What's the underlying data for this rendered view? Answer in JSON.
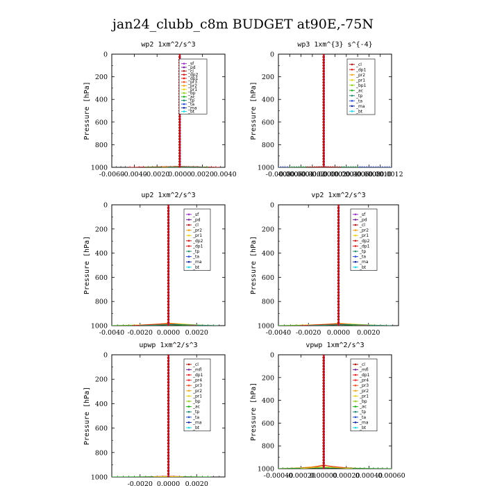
{
  "title": "jan24_clubb_c8m  BUDGET at90E,-75N",
  "colors": {
    "sf": "#9b30c8",
    "pd": "#7a1fa0",
    "mfl": "#7a1fa0",
    "cl": "#b01818",
    "dp2": "#d01818",
    "dp1": "#e01a1a",
    "pr4": "#ee3030",
    "pr3": "#f05020",
    "pr2": "#f5a623",
    "pr1": "#e8d418",
    "bp": "#90d020",
    "ac": "#20b020",
    "tp": "#208c70",
    "ta": "#2850d0",
    "ma": "#1428a0",
    "bt": "#18d8e8"
  },
  "chart_data": [
    {
      "type": "line",
      "title": "wp2   1xm^2/s^3",
      "ylabel": "Pressure  [hPa]",
      "xlim": [
        -0.006,
        0.004
      ],
      "ylim": [
        1000,
        0
      ],
      "xticks": [
        -0.006,
        -0.004,
        -0.002,
        0.0,
        0.002,
        0.004
      ],
      "xtick_labels": [
        "-0.0060",
        "-0.0040",
        "-0.0020",
        "0.0000",
        "0.0020",
        "0.0040"
      ],
      "yticks": [
        0,
        200,
        400,
        600,
        800,
        1000
      ],
      "ytick_labels": [
        "0",
        "200",
        "400",
        "600",
        "800",
        "1000"
      ],
      "legend": [
        "_sf",
        "_pd",
        "_cl",
        "_dp2",
        "_dp1",
        "_pr3",
        "_pr2",
        "_pr1",
        "_bp",
        "_ac",
        "_tp",
        "_ta",
        "_ma",
        "_bt"
      ],
      "legend_keys": [
        "sf",
        "pd",
        "cl",
        "dp2",
        "dp1",
        "pr3",
        "pr2",
        "pr1",
        "bp",
        "ac",
        "tp",
        "ta",
        "ma",
        "bt"
      ],
      "legend_position": "top-right",
      "surface": [
        {
          "key": "dp1",
          "points": [
            [
              -0.0045,
              1000
            ],
            [
              -0.002,
              996
            ],
            [
              -0.0005,
              993
            ],
            [
              0.0,
              991
            ],
            [
              0.0006,
              994
            ],
            [
              0.002,
              997
            ],
            [
              0.0035,
              1000
            ]
          ]
        },
        {
          "key": "cl",
          "points": [
            [
              -0.0035,
              1000
            ],
            [
              -0.0015,
              997
            ],
            [
              0.0,
              993
            ],
            [
              0.0015,
              996
            ],
            [
              0.003,
              1000
            ]
          ]
        },
        {
          "key": "ac",
          "points": [
            [
              -0.003,
              1000
            ],
            [
              -0.001,
              998
            ],
            [
              0.0,
              995
            ],
            [
              0.001,
              998
            ],
            [
              0.0025,
              1000
            ]
          ]
        },
        {
          "key": "pr1",
          "points": [
            [
              -0.0015,
              1000
            ],
            [
              0.0,
              997
            ],
            [
              0.0015,
              1000
            ]
          ]
        },
        {
          "key": "tp",
          "points": [
            [
              -0.001,
              1000
            ],
            [
              0.0005,
              998
            ],
            [
              0.002,
              1000
            ]
          ]
        }
      ]
    },
    {
      "type": "line",
      "title": "wp3   1xm^{3} s^{-4}",
      "ylabel": "Pressure  [hPa]",
      "xlim": [
        -0.0008,
        0.0012
      ],
      "ylim": [
        1000,
        0
      ],
      "xticks": [
        -0.0008,
        -0.0006,
        -0.0004,
        -0.0002,
        0.0,
        0.0002,
        0.0004,
        0.0006,
        0.0008,
        0.001,
        0.0012
      ],
      "xtick_labels": [
        "-0.0008",
        "-0.0006",
        "-0.0004",
        "-0.0002",
        "0.0000",
        "0.0002",
        "0.0004",
        "0.0006",
        "0.0008",
        "0.0010",
        "0.0012"
      ],
      "yticks": [
        0,
        200,
        400,
        600,
        800,
        1000
      ],
      "ytick_labels": [
        "0",
        "200",
        "400",
        "600",
        "800",
        "1000"
      ],
      "legend": [
        "_cl",
        "_dp1",
        "_pr2",
        "_pr1",
        "_bp1",
        "_ac",
        "_tp",
        "_ta",
        "_ma",
        "_bt"
      ],
      "legend_keys": [
        "cl",
        "dp1",
        "pr2",
        "pr1",
        "bp",
        "ac",
        "tp",
        "ta",
        "ma",
        "bt"
      ],
      "legend_position": "top-right",
      "surface": [
        {
          "key": "ta",
          "points": [
            [
              -0.0008,
              1000
            ],
            [
              -0.0003,
              998
            ],
            [
              0.0,
              996
            ],
            [
              0.0004,
              998
            ],
            [
              0.0012,
              1000
            ]
          ]
        },
        {
          "key": "ac",
          "points": [
            [
              -0.0006,
              1000
            ],
            [
              0.0,
              997
            ],
            [
              0.0006,
              1000
            ]
          ]
        },
        {
          "key": "dp1",
          "points": [
            [
              -0.0003,
              1000
            ],
            [
              0.0,
              995
            ],
            [
              0.0003,
              1000
            ]
          ]
        }
      ]
    },
    {
      "type": "line",
      "title": "up2   1xm^2/s^3",
      "ylabel": "Pressure  [hPa]",
      "xlim": [
        -0.004,
        0.004
      ],
      "ylim": [
        1000,
        0
      ],
      "xticks": [
        -0.004,
        -0.002,
        0.0,
        0.002
      ],
      "xtick_labels": [
        "-0.0040",
        "-0.0020",
        "0.0000",
        "0.0020"
      ],
      "yticks": [
        0,
        200,
        400,
        600,
        800,
        1000
      ],
      "ytick_labels": [
        "0",
        "200",
        "400",
        "600",
        "800",
        "1000"
      ],
      "legend": [
        "_sf",
        "_pd",
        "_cl",
        "_pr2",
        "_pr1",
        "_dp2",
        "_dp1",
        "_tp",
        "_ta",
        "_ma",
        "_bt"
      ],
      "legend_keys": [
        "sf",
        "pd",
        "cl",
        "pr2",
        "pr1",
        "dp2",
        "dp1",
        "tp",
        "ta",
        "ma",
        "bt"
      ],
      "legend_position": "top-right",
      "surface": [
        {
          "key": "pr1",
          "points": [
            [
              -0.004,
              1000
            ],
            [
              -0.002,
              994
            ],
            [
              -0.0005,
              985
            ],
            [
              0.0,
              978
            ],
            [
              0.0008,
              985
            ],
            [
              0.002,
              994
            ],
            [
              0.0035,
              1000
            ]
          ]
        },
        {
          "key": "pr2",
          "points": [
            [
              -0.0035,
              1000
            ],
            [
              -0.0015,
              995
            ],
            [
              0.0,
              988
            ],
            [
              0.0012,
              993
            ],
            [
              0.003,
              1000
            ]
          ]
        },
        {
          "key": "ac",
          "points": [
            [
              -0.004,
              1000
            ],
            [
              -0.001,
              997
            ],
            [
              0.0,
              992
            ],
            [
              0.001,
              996
            ],
            [
              0.0025,
              1000
            ]
          ]
        },
        {
          "key": "dp1",
          "points": [
            [
              -0.0025,
              1000
            ],
            [
              0.0,
              983
            ],
            [
              0.002,
              1000
            ]
          ]
        },
        {
          "key": "tp",
          "points": [
            [
              -0.002,
              1000
            ],
            [
              0.0005,
              990
            ],
            [
              0.0035,
              1000
            ]
          ]
        }
      ]
    },
    {
      "type": "line",
      "title": "vp2   1xm^2/s^3",
      "ylabel": "Pressure  [hPa]",
      "xlim": [
        -0.004,
        0.004
      ],
      "ylim": [
        1000,
        0
      ],
      "xticks": [
        -0.004,
        -0.002,
        0.0,
        0.002
      ],
      "xtick_labels": [
        "-0.0040",
        "-0.0020",
        "0.0000",
        "0.0020"
      ],
      "yticks": [
        0,
        200,
        400,
        600,
        800,
        1000
      ],
      "ytick_labels": [
        "0",
        "200",
        "400",
        "600",
        "800",
        "1000"
      ],
      "legend": [
        "_sf",
        "_pd",
        "_cl",
        "_pr2",
        "_pr1",
        "_dp2",
        "_dp1",
        "_tp",
        "_ta",
        "_ma",
        "_bt"
      ],
      "legend_keys": [
        "sf",
        "pd",
        "cl",
        "pr2",
        "pr1",
        "dp2",
        "dp1",
        "tp",
        "ta",
        "ma",
        "bt"
      ],
      "legend_position": "top-right",
      "surface": [
        {
          "key": "pr1",
          "points": [
            [
              -0.004,
              1000
            ],
            [
              -0.002,
              994
            ],
            [
              -0.0005,
              986
            ],
            [
              0.0,
              980
            ],
            [
              0.0008,
              986
            ],
            [
              0.002,
              994
            ],
            [
              0.0035,
              1000
            ]
          ]
        },
        {
          "key": "pr2",
          "points": [
            [
              -0.0035,
              1000
            ],
            [
              -0.0015,
              995
            ],
            [
              0.0,
              989
            ],
            [
              0.0012,
              994
            ],
            [
              0.003,
              1000
            ]
          ]
        },
        {
          "key": "ac",
          "points": [
            [
              -0.004,
              1000
            ],
            [
              -0.001,
              997
            ],
            [
              0.0,
              992
            ],
            [
              0.001,
              996
            ],
            [
              0.0025,
              1000
            ]
          ]
        },
        {
          "key": "dp1",
          "points": [
            [
              -0.0025,
              1000
            ],
            [
              0.0,
              984
            ],
            [
              0.002,
              1000
            ]
          ]
        },
        {
          "key": "tp",
          "points": [
            [
              -0.002,
              1000
            ],
            [
              0.0005,
              991
            ],
            [
              0.0035,
              1000
            ]
          ]
        }
      ]
    },
    {
      "type": "line",
      "title": "upwp   1xm^2/s^3",
      "ylabel": "Pressure  [hPa]",
      "xlim": [
        -0.004,
        0.004
      ],
      "ylim": [
        1000,
        0
      ],
      "xticks": [
        -0.002,
        0.0,
        0.002
      ],
      "xtick_labels": [
        "-0.0020",
        "0.0000",
        "0.0020"
      ],
      "yticks": [
        0,
        200,
        400,
        600,
        800,
        1000
      ],
      "ytick_labels": [
        "0",
        "200",
        "400",
        "600",
        "800",
        "1000"
      ],
      "legend": [
        "_cl",
        "_mfl",
        "_dp1",
        "_pr4",
        "_pr3",
        "_pr2",
        "_pr1",
        "_bp",
        "_ac",
        "_tp",
        "_ta",
        "_ma",
        "_bt"
      ],
      "legend_keys": [
        "cl",
        "mfl",
        "dp1",
        "pr4",
        "pr3",
        "pr2",
        "pr1",
        "bp",
        "ac",
        "tp",
        "ta",
        "ma",
        "bt"
      ],
      "legend_position": "top-right",
      "surface": [
        {
          "key": "dp1",
          "points": [
            [
              -0.002,
              1000
            ],
            [
              0.0,
              994
            ],
            [
              0.002,
              1000
            ]
          ]
        },
        {
          "key": "ac",
          "points": [
            [
              -0.004,
              1000
            ],
            [
              0.0,
              998
            ],
            [
              0.003,
              1000
            ]
          ]
        },
        {
          "key": "pr1",
          "points": [
            [
              -0.001,
              1000
            ],
            [
              0.0,
              996
            ],
            [
              0.001,
              1000
            ]
          ]
        }
      ]
    },
    {
      "type": "line",
      "title": "vpwp   1xm^2/s^3",
      "ylabel": "Pressure  [hPa]",
      "xlim": [
        -0.0004,
        0.0006
      ],
      "ylim": [
        1000,
        0
      ],
      "xticks": [
        -0.0004,
        -0.0002,
        0.0,
        0.0002,
        0.0004,
        0.0006
      ],
      "xtick_labels": [
        "-0.00040",
        "-0.00020",
        "0.00000",
        "0.00020",
        "0.00040",
        "0.00060"
      ],
      "yticks": [
        0,
        200,
        400,
        600,
        800,
        1000
      ],
      "ytick_labels": [
        "0",
        "200",
        "400",
        "600",
        "800",
        "1000"
      ],
      "legend": [
        "_cl",
        "_mfl",
        "_dp1",
        "_pr4",
        "_pr3",
        "_pr2",
        "_pr1",
        "_bp",
        "_ac",
        "_tp",
        "_ta",
        "_ma",
        "_bt"
      ],
      "legend_keys": [
        "cl",
        "mfl",
        "dp1",
        "pr4",
        "pr3",
        "pr2",
        "pr1",
        "bp",
        "ac",
        "tp",
        "ta",
        "ma",
        "bt"
      ],
      "legend_position": "top-right",
      "surface": [
        {
          "key": "pr2",
          "points": [
            [
              -0.0004,
              1000
            ],
            [
              -0.0002,
              992
            ],
            [
              -5e-05,
              978
            ],
            [
              0.0,
              965
            ],
            [
              5e-05,
              978
            ],
            [
              0.0002,
              992
            ],
            [
              0.0004,
              1000
            ]
          ]
        },
        {
          "key": "dp1",
          "points": [
            [
              -0.0003,
              1000
            ],
            [
              -0.0001,
              990
            ],
            [
              0.0,
              970
            ],
            [
              0.0001,
              985
            ],
            [
              0.0003,
              1000
            ]
          ]
        },
        {
          "key": "ac",
          "points": [
            [
              -0.0004,
              1000
            ],
            [
              0.0,
              992
            ],
            [
              0.0004,
              998
            ],
            [
              0.0006,
              1000
            ]
          ]
        },
        {
          "key": "pr1",
          "points": [
            [
              -0.0002,
              1000
            ],
            [
              0.0,
              983
            ],
            [
              0.00025,
              1000
            ]
          ]
        }
      ]
    }
  ]
}
